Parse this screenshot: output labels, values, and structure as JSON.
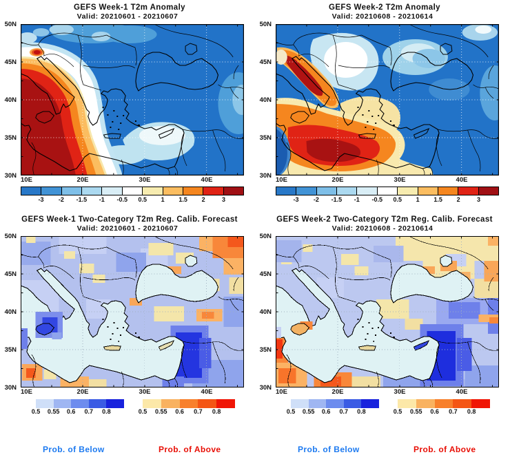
{
  "panels": [
    {
      "title": "GEFS Week-1 T2m Anomaly",
      "valid": "Valid: 20210601 - 20210607"
    },
    {
      "title": "GEFS Week-2 T2m Anomaly",
      "valid": "Valid: 20210608 - 20210614"
    },
    {
      "title": "GEFS Week-1 Two-Category T2m Reg. Calib. Forecast",
      "valid": "Valid: 20210601 - 20210607"
    },
    {
      "title": "GEFS Week-2 Two-Category T2m Reg. Calib. Forecast",
      "valid": "Valid: 20210608 - 20210614"
    }
  ],
  "axes": {
    "lat_labels": [
      "50N",
      "45N",
      "40N",
      "35N",
      "30N"
    ],
    "lon_labels": [
      "10E",
      "20E",
      "30E",
      "40E"
    ]
  },
  "colorbars": {
    "anomaly": {
      "tick_labels": [
        "-3",
        "-2",
        "-1.5",
        "-1",
        "-0.5",
        "0.5",
        "1",
        "1.5",
        "2",
        "3"
      ],
      "colors": [
        "#2878c8",
        "#4193d6",
        "#7ebfe8",
        "#abd9f0",
        "#d9eef6",
        "#ffffff",
        "#f7ecb0",
        "#fbbd60",
        "#f5861f",
        "#e02315",
        "#a01014"
      ],
      "label_mode": "boundary"
    },
    "prob_below": {
      "tick_labels": [
        "0.5",
        "0.55",
        "0.6",
        "0.7",
        "0.8"
      ],
      "colors": [
        "#cfdff8",
        "#9fb6f2",
        "#6d8cee",
        "#3a5be4",
        "#1822dd"
      ],
      "label_mode": "edge"
    },
    "prob_above": {
      "tick_labels": [
        "0.5",
        "0.55",
        "0.6",
        "0.7",
        "0.8"
      ],
      "colors": [
        "#fce8a8",
        "#f9b260",
        "#f8802c",
        "#f45514",
        "#f01505"
      ],
      "label_mode": "edge"
    }
  },
  "footer": {
    "below_label": "Prob. of Below",
    "below_color": "#1d7af0",
    "above_label": "Prob. of Above",
    "above_color": "#e80f06"
  }
}
